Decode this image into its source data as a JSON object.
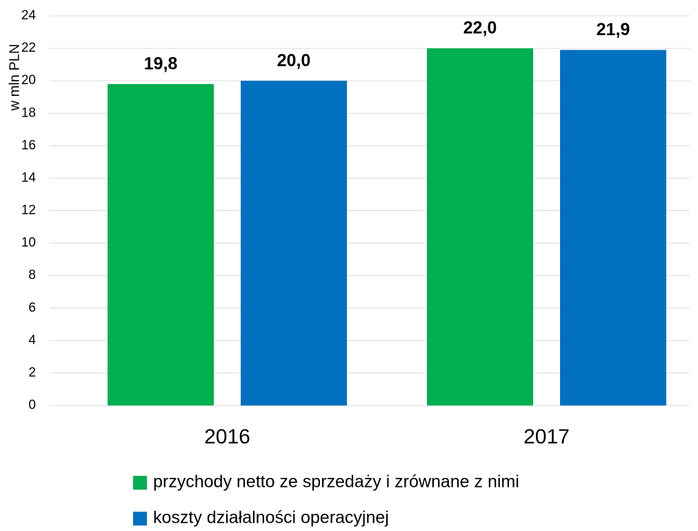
{
  "chart_data": {
    "type": "bar",
    "ylabel": "w mln PLN",
    "categories": [
      "2016",
      "2017"
    ],
    "series": [
      {
        "name": "przychody netto ze sprzedaży i zrównane z nimi",
        "color": "#00b050",
        "values": [
          19.8,
          22.0
        ],
        "value_labels": [
          "19,8",
          "22,0"
        ]
      },
      {
        "name": "koszty działalności operacyjnej",
        "color": "#0070c0",
        "values": [
          20.0,
          21.9
        ],
        "value_labels": [
          "20,0",
          "21,9"
        ]
      }
    ],
    "ylim": [
      0,
      24
    ],
    "yticks": [
      0,
      2,
      4,
      6,
      8,
      10,
      12,
      14,
      16,
      18,
      20,
      22,
      24
    ],
    "grid": true,
    "legend": "bottom"
  }
}
